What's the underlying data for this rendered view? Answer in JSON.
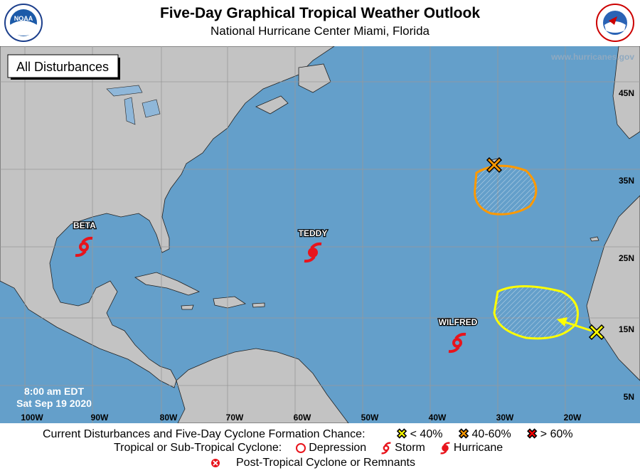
{
  "header": {
    "title": "Five-Day Graphical Tropical Weather Outlook",
    "subtitle": "National Hurricane Center  Miami, Florida",
    "left_logo": "NOAA",
    "right_logo": "National Weather Service"
  },
  "map": {
    "panel_label": "All Disturbances",
    "website": "www.hurricanes.gov",
    "time": "8:00 am EDT",
    "date": "Sat Sep 19 2020",
    "lon_labels": [
      "100W",
      "90W",
      "80W",
      "70W",
      "60W",
      "50W",
      "40W",
      "30W",
      "20W"
    ],
    "lat_labels": [
      "45N",
      "35N",
      "25N",
      "15N",
      "5N"
    ],
    "colors": {
      "ocean": "#649fca",
      "land": "#c3c3c3",
      "yellow": "#ffff00",
      "orange": "#ff9900",
      "red": "#ff0000",
      "storm": "#e8141c"
    },
    "storms": [
      {
        "name": "BETA",
        "type": "storm"
      },
      {
        "name": "TEDDY",
        "type": "hurricane"
      },
      {
        "name": "WILFRED",
        "type": "storm"
      }
    ],
    "disturbances": [
      {
        "chance": "40-60%",
        "color": "orange"
      },
      {
        "chance": "< 40%",
        "color": "yellow"
      }
    ]
  },
  "legend": {
    "formation_label": "Current Disturbances and Five-Day Cyclone Formation Chance:",
    "low": "< 40%",
    "medium": "40-60%",
    "high": "> 60%",
    "cyclone_label": "Tropical or Sub-Tropical Cyclone:",
    "depression": "Depression",
    "storm": "Storm",
    "hurricane": "Hurricane",
    "post_tropical": "Post-Tropical Cyclone or Remnants"
  }
}
